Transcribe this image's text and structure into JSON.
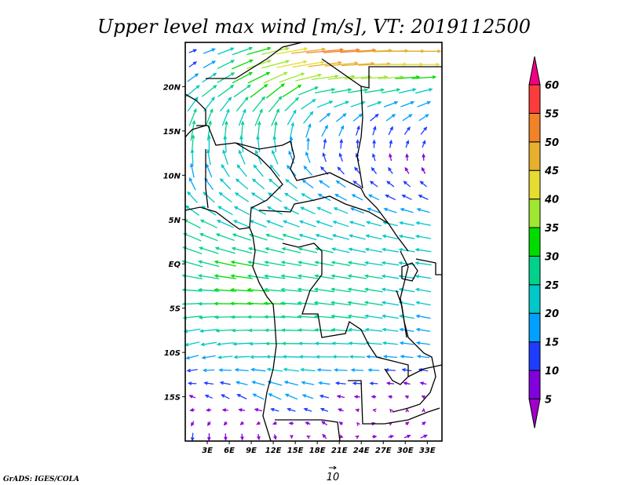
{
  "title": "Upper level max wind [m/s], VT: 2019112500",
  "credit": "GrADS: IGES/COLA",
  "reference_vector": {
    "label": "10",
    "speed": 10
  },
  "map": {
    "lon_range": [
      0,
      35
    ],
    "lat_range": [
      -20,
      25
    ],
    "lat_ticks": [
      {
        "v": 20,
        "label": "20N"
      },
      {
        "v": 15,
        "label": "15N"
      },
      {
        "v": 10,
        "label": "10N"
      },
      {
        "v": 5,
        "label": "5N"
      },
      {
        "v": 0,
        "label": "EQ"
      },
      {
        "v": -5,
        "label": "5S"
      },
      {
        "v": -10,
        "label": "10S"
      },
      {
        "v": -15,
        "label": "15S"
      }
    ],
    "lon_ticks": [
      {
        "v": 3,
        "label": "3E"
      },
      {
        "v": 6,
        "label": "6E"
      },
      {
        "v": 9,
        "label": "9E"
      },
      {
        "v": 12,
        "label": "12E"
      },
      {
        "v": 15,
        "label": "15E"
      },
      {
        "v": 18,
        "label": "18E"
      },
      {
        "v": 21,
        "label": "21E"
      },
      {
        "v": 24,
        "label": "24E"
      },
      {
        "v": 27,
        "label": "27E"
      },
      {
        "v": 30,
        "label": "30E"
      },
      {
        "v": 33,
        "label": "33E"
      }
    ]
  },
  "colorbar": {
    "labels": [
      "5",
      "10",
      "15",
      "20",
      "25",
      "30",
      "35",
      "40",
      "45",
      "50",
      "55",
      "60"
    ],
    "levels": [
      5,
      10,
      15,
      20,
      25,
      30,
      35,
      40,
      45,
      50,
      55,
      60
    ],
    "colors": [
      "#a000c8",
      "#8200dc",
      "#1e3cff",
      "#00a0ff",
      "#00c8c8",
      "#00d28c",
      "#00dc00",
      "#a0e632",
      "#e6dc32",
      "#e6af2d",
      "#f08228",
      "#fa3c3c",
      "#f00082"
    ]
  },
  "wind_grid": {
    "lons": [
      1,
      7,
      13,
      19,
      25,
      31,
      35
    ],
    "lats": [
      25,
      22,
      20,
      15,
      10,
      5,
      0,
      -5,
      -10,
      -15,
      -20
    ],
    "u": [
      [
        10,
        25,
        40,
        55,
        52,
        50,
        50
      ],
      [
        10,
        28,
        40,
        45,
        44,
        42,
        42
      ],
      [
        20,
        25,
        28,
        30,
        30,
        25,
        25
      ],
      [
        5,
        2,
        3,
        8,
        3,
        8,
        8
      ],
      [
        -5,
        -15,
        -15,
        -12,
        -8,
        -6,
        -6
      ],
      [
        -22,
        -22,
        -22,
        -22,
        -20,
        -20,
        -20
      ],
      [
        -28,
        -30,
        -28,
        -26,
        -25,
        -22,
        -22
      ],
      [
        -27,
        -32,
        -30,
        -28,
        -26,
        -20,
        -20
      ],
      [
        -18,
        -22,
        -24,
        -24,
        -22,
        -18,
        -18
      ],
      [
        -8,
        -12,
        -18,
        -12,
        -6,
        -4,
        -4
      ],
      [
        0,
        2,
        4,
        -4,
        6,
        10,
        10
      ]
    ],
    "v": [
      [
        2,
        8,
        8,
        4,
        3,
        0,
        0
      ],
      [
        8,
        14,
        10,
        6,
        2,
        0,
        0
      ],
      [
        14,
        15,
        20,
        4,
        3,
        5,
        5
      ],
      [
        28,
        26,
        25,
        15,
        12,
        10,
        10
      ],
      [
        18,
        15,
        15,
        10,
        8,
        8,
        8
      ],
      [
        12,
        10,
        9,
        8,
        6,
        4,
        4
      ],
      [
        8,
        6,
        5,
        5,
        4,
        3,
        3
      ],
      [
        -2,
        0,
        1,
        3,
        4,
        4,
        4
      ],
      [
        -5,
        -2,
        0,
        0,
        1,
        2,
        2
      ],
      [
        3,
        6,
        8,
        3,
        0,
        2,
        2
      ],
      [
        -12,
        -10,
        -8,
        6,
        0,
        4,
        4
      ]
    ]
  }
}
